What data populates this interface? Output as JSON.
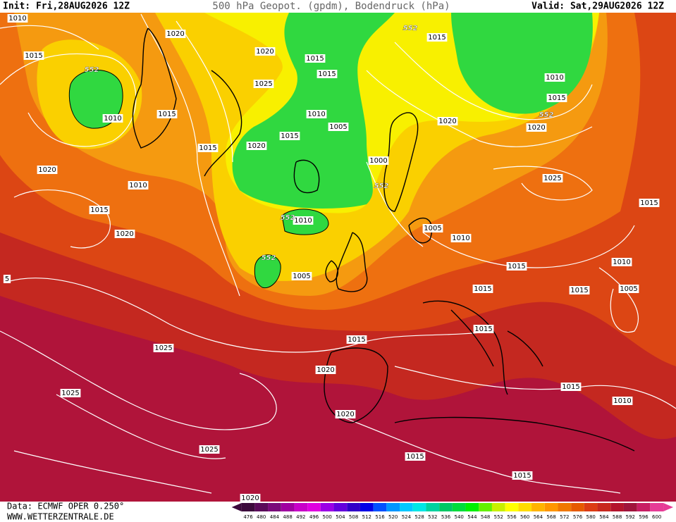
{
  "header": {
    "init": "Init: Fri,28AUG2026 12Z",
    "title": "500 hPa Geopot. (gpdm), Bodendruck (hPa)",
    "valid": "Valid: Sat,29AUG2026 12Z"
  },
  "footer": {
    "source": "Data: ECMWF OPER 0.250°",
    "site": "WWW.WETTERZENTRALE.DE"
  },
  "colorbar": {
    "ticks": [
      476,
      480,
      484,
      488,
      492,
      496,
      500,
      504,
      508,
      512,
      516,
      520,
      524,
      528,
      532,
      536,
      540,
      544,
      548,
      552,
      556,
      560,
      564,
      568,
      572,
      576,
      580,
      584,
      588,
      592,
      596,
      600
    ],
    "colors": [
      "#3c0a3c",
      "#5a0a5a",
      "#7a0a7a",
      "#a000a0",
      "#c800c8",
      "#e000e0",
      "#9b00e6",
      "#6400dc",
      "#3200c8",
      "#0000e6",
      "#0050ff",
      "#0096ff",
      "#00c8ff",
      "#00e6e6",
      "#00d2a0",
      "#00c864",
      "#00dc3c",
      "#00f000",
      "#64f000",
      "#c8f000",
      "#ffff00",
      "#ffdc00",
      "#ffb400",
      "#ff9600",
      "#f07800",
      "#e65a00",
      "#dc3c14",
      "#c8281e",
      "#b4142d",
      "#a0143c",
      "#c81e64",
      "#e63c96"
    ]
  },
  "isobar_labels": [
    1010,
    1020,
    1015,
    1010,
    1015,
    1020,
    1015,
    1015,
    1025,
    1010,
    1005,
    1015,
    1020,
    1015,
    1020,
    1010,
    1015,
    1020,
    1015,
    1010,
    1015,
    1020,
    1020,
    1000,
    1025,
    1015,
    1010,
    1005,
    1010,
    1005,
    1015,
    1010,
    1015,
    1015,
    1005,
    1015,
    1015,
    1025,
    1020,
    1025,
    1015,
    1010,
    1020,
    1025,
    1015,
    1015,
    5,
    1020
  ],
  "geopotential_labels": [
    552,
    552,
    552,
    552,
    552,
    552
  ]
}
